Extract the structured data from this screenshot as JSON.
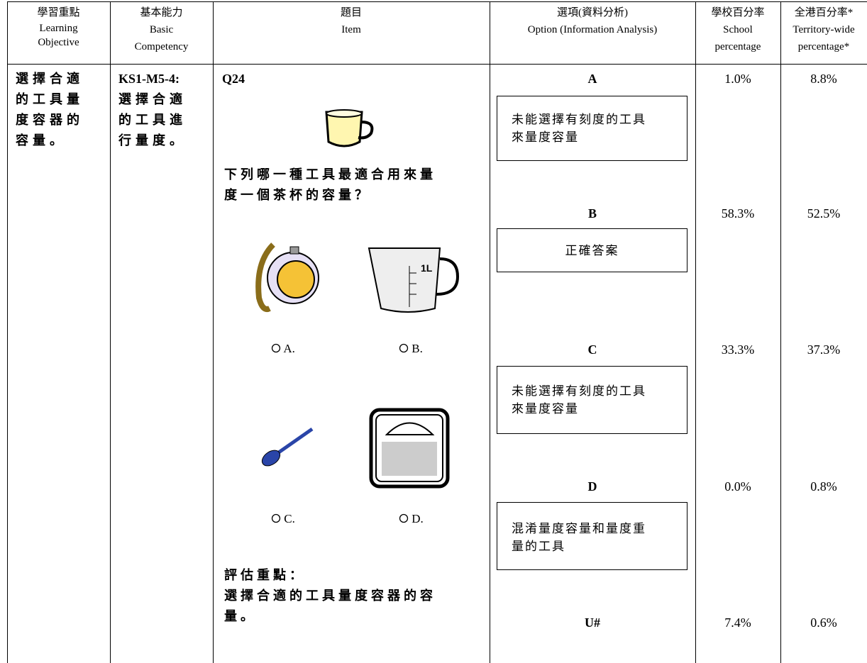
{
  "table": {
    "header": [
      [
        "學習重點",
        "Learning",
        "Objective"
      ],
      [
        "基本能力",
        "Basic",
        "Competency"
      ],
      [
        "題目",
        "Item"
      ],
      [
        "選項(資料分析)",
        "Option (Information Analysis)"
      ],
      [
        "學校百分率",
        "School",
        "percentage"
      ],
      [
        "全港百分率*",
        "Territory-wide",
        "percentage*"
      ]
    ],
    "learning_objective": [
      "選擇合適",
      "的工具量",
      "度容器的",
      "容量。"
    ],
    "basic_competency": {
      "code": "KS1-M5-4:",
      "lines": [
        "選擇合適",
        "的工具進",
        "行量度。"
      ]
    },
    "item": {
      "number": "Q24",
      "question": [
        "下列哪一種工具最適合用來量",
        "度一個茶杯的容量？"
      ],
      "jug_label": "1L",
      "choices": [
        "A.",
        "B.",
        "C.",
        "D."
      ],
      "focus_title": "評估重點：",
      "focus": [
        "選擇合適的工具量度容器的容",
        "量。"
      ]
    },
    "options": [
      {
        "label": "A",
        "analysis": [
          "未能選擇有刻度的工具",
          "來量度容量"
        ],
        "school": "1.0%",
        "territory": "8.8%"
      },
      {
        "label": "B",
        "analysis": [
          "正確答案"
        ],
        "school": "58.3%",
        "territory": "52.5%"
      },
      {
        "label": "C",
        "analysis": [
          "未能選擇有刻度的工具",
          "來量度容量"
        ],
        "school": "33.3%",
        "territory": "37.3%"
      },
      {
        "label": "D",
        "analysis": [
          "混淆量度容量和量度重",
          "量的工具"
        ],
        "school": "0.0%",
        "territory": "0.8%"
      },
      {
        "label": "U#",
        "school": "7.4%",
        "territory": "0.6%"
      }
    ]
  }
}
